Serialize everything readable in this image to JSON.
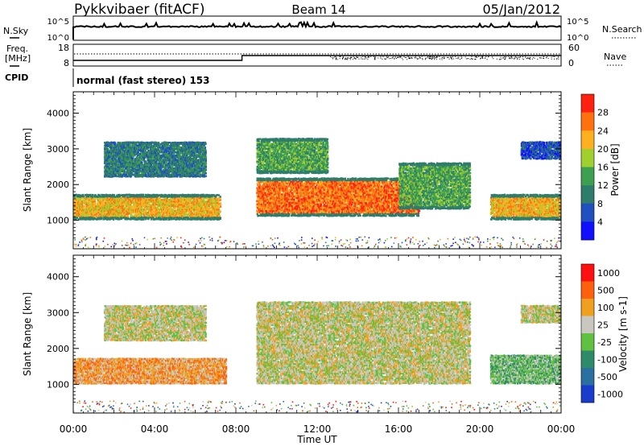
{
  "header": {
    "station": "Pykkvibaer (fitACF)",
    "beam": "Beam 14",
    "date": "05/Jan/2012"
  },
  "noise_panel": {
    "left_label": "N.Sky",
    "right_label": "N.Search",
    "left_ticks": [
      "10^5",
      "10^0"
    ],
    "right_ticks": [
      "10^5",
      "10^0"
    ]
  },
  "freq_panel": {
    "left_label_1": "Freq.",
    "left_label_2": "[MHz]",
    "right_label": "Nave",
    "left_ticks": [
      "18",
      "8"
    ],
    "right_ticks": [
      "60",
      "0"
    ],
    "cpid_label": "CPID",
    "cpid_text": "normal (fast stereo) 153"
  },
  "chart_data": [
    {
      "type": "heatmap",
      "title": "",
      "xlabel": "Time UT",
      "ylabel": "Slant Range [km]",
      "x_ticks": [
        "00:00",
        "04:00",
        "08:00",
        "12:00",
        "16:00",
        "20:00",
        "00:00"
      ],
      "y_ticks": [
        "1000",
        "2000",
        "3000",
        "4000"
      ],
      "ylim": [
        200,
        4600
      ],
      "colorbar": {
        "label": "Power [dB]",
        "ticks": [
          "4",
          "8",
          "12",
          "16",
          "20",
          "24",
          "28"
        ],
        "colors": [
          "#1010ff",
          "#2050c0",
          "#2e7d6a",
          "#3ca050",
          "#a0d030",
          "#ffb020",
          "#ff7010",
          "#ff2010"
        ]
      },
      "regions": [
        {
          "t0": 0.0,
          "t1": 7.2,
          "r0": 1000,
          "r1": 1700,
          "level": 5
        },
        {
          "t0": 1.5,
          "t1": 6.5,
          "r0": 2200,
          "r1": 3200,
          "level": 2
        },
        {
          "t0": 9.0,
          "t1": 17.0,
          "r0": 1100,
          "r1": 2200,
          "level": 6
        },
        {
          "t0": 9.0,
          "t1": 12.5,
          "r0": 2300,
          "r1": 3300,
          "level": 3
        },
        {
          "t0": 16.0,
          "t1": 19.5,
          "r0": 1300,
          "r1": 2600,
          "level": 3
        },
        {
          "t0": 20.5,
          "t1": 24.0,
          "r0": 1000,
          "r1": 1700,
          "level": 5
        },
        {
          "t0": 22.0,
          "t1": 24.0,
          "r0": 2700,
          "r1": 3200,
          "level": 1
        }
      ]
    },
    {
      "type": "heatmap",
      "title": "",
      "xlabel": "Time UT",
      "ylabel": "Slant Range [km]",
      "x_ticks": [
        "00:00",
        "04:00",
        "08:00",
        "12:00",
        "16:00",
        "20:00",
        "00:00"
      ],
      "y_ticks": [
        "1000",
        "2000",
        "3000",
        "4000"
      ],
      "ylim": [
        200,
        4600
      ],
      "colorbar": {
        "label": "Velocity [m s-1]",
        "ticks": [
          "1000",
          "500",
          "100",
          "25",
          "-25",
          "-100",
          "-500",
          "-1000"
        ],
        "colors": [
          "#1a3ccc",
          "#2a70a0",
          "#2e8b6a",
          "#60c040",
          "#c8c8c0",
          "#f0a020",
          "#ff6010",
          "#ff1010"
        ]
      },
      "regions": [
        {
          "t0": 0.0,
          "t1": 7.5,
          "r0": 1000,
          "r1": 1700,
          "level": 5
        },
        {
          "t0": 1.5,
          "t1": 6.5,
          "r0": 2200,
          "r1": 3200,
          "level": 4
        },
        {
          "t0": 9.0,
          "t1": 19.5,
          "r0": 1000,
          "r1": 3300,
          "level": 4
        },
        {
          "t0": 20.5,
          "t1": 24.0,
          "r0": 1000,
          "r1": 1800,
          "level": 3
        },
        {
          "t0": 22.0,
          "t1": 24.0,
          "r0": 2700,
          "r1": 3200,
          "level": 4
        }
      ]
    }
  ]
}
